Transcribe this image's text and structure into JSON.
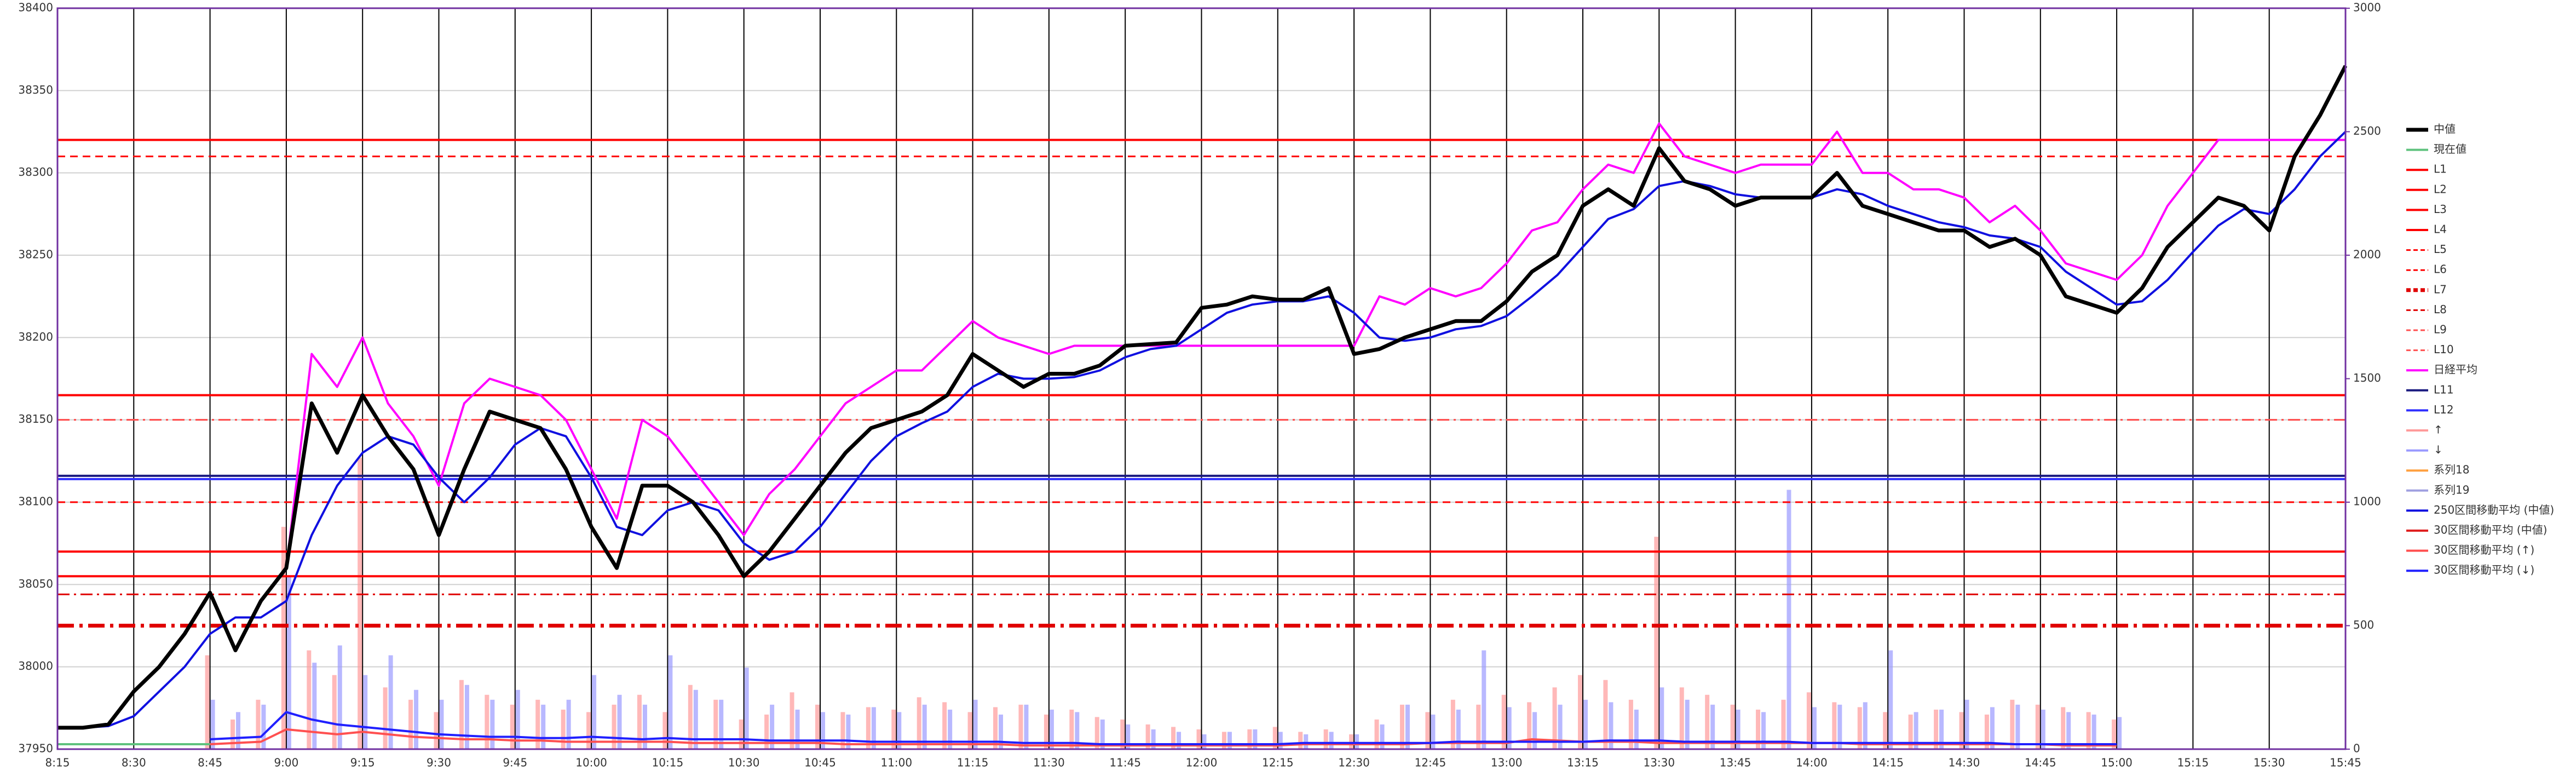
{
  "chart_data": {
    "type": "line",
    "categories": [
      "8:15",
      null,
      null,
      "8:30",
      null,
      null,
      "8:45",
      null,
      null,
      "9:00",
      null,
      null,
      "9:15",
      null,
      null,
      "9:30",
      null,
      null,
      "9:45",
      null,
      null,
      "10:00",
      null,
      null,
      "10:15",
      null,
      null,
      "10:30",
      null,
      null,
      "10:45",
      null,
      null,
      "11:00",
      null,
      null,
      "11:15",
      null,
      null,
      "11:30",
      null,
      null,
      "11:45",
      null,
      null,
      "12:00",
      null,
      null,
      "12:15",
      null,
      null,
      "12:30",
      null,
      null,
      "12:45",
      null,
      null,
      "13:00",
      null,
      null,
      "13:15",
      null,
      null,
      "13:30",
      null,
      null,
      "13:45",
      null,
      null,
      "14:00",
      null,
      null,
      "14:15",
      null,
      null,
      "14:30",
      null,
      null,
      "14:45",
      null,
      null,
      "15:00",
      null,
      null,
      "15:15",
      null,
      null,
      "15:30",
      null,
      null,
      "15:45"
    ],
    "ylim": [
      37950,
      38400
    ],
    "yticks": [
      37950,
      38000,
      38050,
      38100,
      38150,
      38200,
      38250,
      38300,
      38350,
      38400
    ],
    "y2lim": [
      0,
      3000
    ],
    "y2ticks": [
      0,
      500,
      1000,
      1500,
      2000,
      2500,
      3000
    ],
    "grid": true,
    "series": [
      {
        "name": "中値",
        "color": "#000000",
        "style": "bold",
        "values": [
          37963,
          37963,
          37965,
          37985,
          38000,
          38020,
          38045,
          38010,
          38040,
          38060,
          38160,
          38130,
          38165,
          38140,
          38120,
          38080,
          38120,
          38155,
          38150,
          38145,
          38120,
          38085,
          38060,
          38110,
          38110,
          38100,
          38080,
          38055,
          38070,
          38090,
          38110,
          38130,
          38145,
          38150,
          38155,
          38165,
          38190,
          38180,
          38170,
          38178,
          38178,
          38183,
          38195,
          38196,
          38197,
          38218,
          38220,
          38225,
          38223,
          38223,
          38230,
          38190,
          38193,
          38200,
          38205,
          38210,
          38210,
          38222,
          38240,
          38250,
          38280,
          38290,
          38280,
          38315,
          38295,
          38290,
          38280,
          38285,
          38285,
          38285,
          38300,
          38280,
          38275,
          38270,
          38265,
          38265,
          38255,
          38260,
          38250,
          38225,
          38220,
          38215,
          38230,
          38255,
          38270,
          38285,
          38280,
          38265,
          38310,
          38335,
          38365
        ]
      },
      {
        "name": "現在値",
        "color": "#5fc27e",
        "style": "solid",
        "values": [
          37953,
          37953,
          37953,
          37953,
          37953,
          37953,
          37953,
          null,
          null,
          null,
          null,
          null,
          null,
          null,
          null,
          null,
          null,
          null,
          null,
          null,
          null,
          null,
          null,
          null,
          null,
          null,
          null,
          null,
          null,
          null,
          null,
          null,
          null,
          null,
          null,
          null,
          null,
          null,
          null,
          null,
          null,
          null,
          null,
          null,
          null,
          null,
          null,
          null,
          null,
          null,
          null,
          null,
          null,
          null,
          null,
          null,
          null,
          null,
          null,
          null,
          null,
          null,
          null,
          null,
          null,
          null,
          null,
          null,
          null,
          null,
          null,
          null,
          null,
          null,
          null,
          null,
          null,
          null,
          null,
          null,
          null,
          null,
          null,
          null,
          null,
          null,
          null,
          null,
          null,
          null,
          null
        ]
      },
      {
        "name": "L1",
        "color": "#ff0000",
        "style": "solid",
        "level": 38320
      },
      {
        "name": "L2",
        "color": "#ff0000",
        "style": "solid",
        "level": 38165
      },
      {
        "name": "L3",
        "color": "#ff0000",
        "style": "solid",
        "level": 38070
      },
      {
        "name": "L4",
        "color": "#ff0000",
        "style": "solid",
        "level": 38055
      },
      {
        "name": "L5",
        "color": "#ff0000",
        "style": "dash",
        "level": 38310
      },
      {
        "name": "L6",
        "color": "#ff0000",
        "style": "dash",
        "level": 38100
      },
      {
        "name": "L7",
        "color": "#e00000",
        "style": "dashdot-bold",
        "level": 38025
      },
      {
        "name": "L8",
        "color": "#e00000",
        "style": "dashdot",
        "level": 38044
      },
      {
        "name": "L9",
        "color": "#ff5050",
        "style": "dashdot",
        "level": 38150
      },
      {
        "name": "L10",
        "color": "#ff5050",
        "style": "dashdot",
        "level": 38150
      },
      {
        "name": "日経平均",
        "color": "#ff00ff",
        "style": "solid",
        "values": [
          null,
          null,
          null,
          null,
          null,
          null,
          null,
          null,
          null,
          38060,
          38190,
          38170,
          38200,
          38160,
          38140,
          38110,
          38160,
          38175,
          38170,
          38165,
          38150,
          38120,
          38090,
          38150,
          38140,
          38120,
          38100,
          38080,
          38105,
          38120,
          38140,
          38160,
          38170,
          38180,
          38180,
          38195,
          38210,
          38200,
          38195,
          38190,
          38195,
          38195,
          38195,
          38195,
          38195,
          38195,
          38195,
          38195,
          38195,
          38195,
          38195,
          38195,
          38225,
          38220,
          38230,
          38225,
          38230,
          38245,
          38265,
          38270,
          38290,
          38305,
          38300,
          38330,
          38310,
          38305,
          38300,
          38305,
          38305,
          38305,
          38325,
          38300,
          38300,
          38290,
          38290,
          38285,
          38270,
          38280,
          38265,
          38245,
          38240,
          38235,
          38250,
          38280,
          38300,
          38320,
          38320,
          38320,
          38320,
          38320,
          38320
        ]
      },
      {
        "name": "L11",
        "color": "#1a1a80",
        "style": "solid",
        "level": 38116
      },
      {
        "name": "L12",
        "color": "#3030ff",
        "style": "solid",
        "level": 38114
      },
      {
        "name": "↑",
        "color": "#ff9a9a",
        "style": "bar",
        "axis": "y2",
        "values": [
          null,
          null,
          null,
          null,
          null,
          null,
          380,
          120,
          200,
          900,
          400,
          300,
          1180,
          250,
          200,
          150,
          280,
          220,
          180,
          200,
          160,
          150,
          180,
          220,
          150,
          260,
          200,
          120,
          140,
          230,
          180,
          150,
          170,
          160,
          210,
          190,
          150,
          170,
          180,
          140,
          160,
          130,
          120,
          100,
          90,
          80,
          70,
          80,
          90,
          70,
          80,
          60,
          120,
          180,
          150,
          200,
          180,
          220,
          190,
          250,
          300,
          280,
          200,
          860,
          250,
          220,
          180,
          160,
          200,
          230,
          190,
          170,
          150,
          140,
          160,
          150,
          140,
          200,
          180,
          170,
          150,
          120,
          null,
          null,
          null,
          null,
          null,
          null,
          null,
          null,
          null
        ]
      },
      {
        "name": "↓",
        "color": "#9a9aff",
        "style": "bar",
        "axis": "y2",
        "values": [
          null,
          null,
          null,
          null,
          null,
          null,
          200,
          150,
          180,
          700,
          350,
          420,
          300,
          380,
          240,
          200,
          260,
          200,
          240,
          180,
          200,
          300,
          220,
          180,
          380,
          240,
          200,
          330,
          180,
          160,
          150,
          140,
          170,
          150,
          180,
          160,
          200,
          140,
          180,
          160,
          150,
          120,
          100,
          80,
          70,
          60,
          70,
          80,
          70,
          60,
          70,
          60,
          100,
          180,
          140,
          160,
          400,
          170,
          150,
          180,
          200,
          190,
          160,
          250,
          200,
          180,
          160,
          150,
          1050,
          170,
          180,
          190,
          400,
          150,
          160,
          200,
          170,
          180,
          160,
          150,
          140,
          130,
          null,
          null,
          null,
          null,
          null,
          null,
          null,
          null,
          null
        ]
      },
      {
        "name": "系列18",
        "color": "#ffa040",
        "style": "solid"
      },
      {
        "name": "系列19",
        "color": "#a0a0e0",
        "style": "solid"
      },
      {
        "name": "250区間移動平均 (中値)",
        "color": "#1010e0",
        "style": "solid",
        "values": [
          37963,
          37963,
          37964,
          37970,
          37985,
          38000,
          38020,
          38030,
          38030,
          38040,
          38080,
          38110,
          38130,
          38140,
          38135,
          38115,
          38100,
          38115,
          38135,
          38145,
          38140,
          38115,
          38085,
          38080,
          38095,
          38100,
          38095,
          38075,
          38065,
          38070,
          38085,
          38105,
          38125,
          38140,
          38148,
          38155,
          38170,
          38178,
          38175,
          38175,
          38176,
          38180,
          38188,
          38193,
          38195,
          38205,
          38215,
          38220,
          38222,
          38222,
          38225,
          38215,
          38200,
          38198,
          38200,
          38205,
          38207,
          38213,
          38225,
          38238,
          38255,
          38272,
          38278,
          38292,
          38295,
          38292,
          38287,
          38285,
          38285,
          38285,
          38290,
          38287,
          38280,
          38275,
          38270,
          38267,
          38262,
          38260,
          38255,
          38240,
          38230,
          38220,
          38222,
          38235,
          38252,
          38268,
          38278,
          38275,
          38290,
          38310,
          38325
        ]
      },
      {
        "name": "30区間移動平均 (中値)",
        "color": "#e02020",
        "style": "solid"
      },
      {
        "name": "30区間移動平均 (↑)",
        "color": "#ff5050",
        "style": "solid",
        "axis": "y2",
        "values": [
          null,
          null,
          null,
          null,
          null,
          null,
          20,
          25,
          30,
          80,
          70,
          60,
          70,
          60,
          50,
          45,
          40,
          40,
          35,
          35,
          30,
          30,
          30,
          30,
          30,
          25,
          25,
          25,
          25,
          25,
          25,
          20,
          20,
          20,
          20,
          20,
          20,
          20,
          15,
          15,
          15,
          15,
          15,
          15,
          15,
          15,
          15,
          15,
          15,
          20,
          20,
          20,
          20,
          20,
          25,
          25,
          25,
          25,
          40,
          35,
          30,
          30,
          30,
          25,
          25,
          25,
          25,
          25,
          25,
          25,
          25,
          20,
          20,
          20,
          20,
          20,
          20,
          20,
          20,
          15,
          15,
          15,
          null,
          null,
          null,
          null,
          null,
          null,
          null,
          null,
          null
        ]
      },
      {
        "name": "30区間移動平均 (↓)",
        "color": "#2020ff",
        "style": "solid",
        "axis": "y2",
        "values": [
          null,
          null,
          null,
          null,
          null,
          null,
          40,
          45,
          50,
          150,
          120,
          100,
          90,
          80,
          70,
          60,
          55,
          50,
          50,
          45,
          45,
          50,
          45,
          40,
          45,
          40,
          40,
          40,
          35,
          35,
          35,
          35,
          30,
          30,
          30,
          30,
          30,
          30,
          25,
          25,
          25,
          20,
          20,
          20,
          20,
          20,
          20,
          20,
          20,
          25,
          25,
          25,
          25,
          25,
          25,
          30,
          30,
          30,
          30,
          30,
          30,
          35,
          35,
          35,
          30,
          30,
          30,
          30,
          30,
          25,
          25,
          25,
          25,
          25,
          25,
          25,
          25,
          20,
          20,
          20,
          20,
          20,
          null,
          null,
          null,
          null,
          null,
          null,
          null,
          null,
          null
        ]
      }
    ]
  }
}
